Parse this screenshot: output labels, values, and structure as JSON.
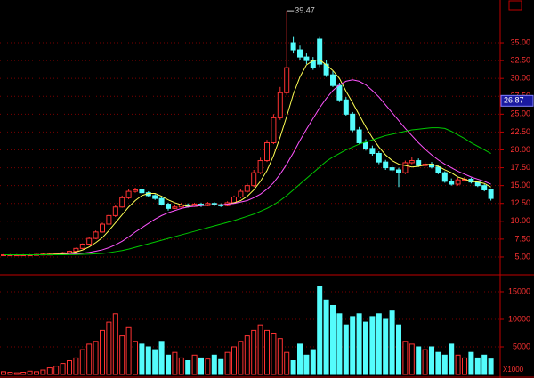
{
  "chart_data": [
    {
      "type": "candlestick",
      "open": [
        5.3,
        5.3,
        5.3,
        5.3,
        5.3,
        5.3,
        5.35,
        5.4,
        5.4,
        5.5,
        5.6,
        5.8,
        6.2,
        6.8,
        7.6,
        8.5,
        9.6,
        10.8,
        12,
        13.3,
        14.2,
        14.4,
        14,
        13.6,
        13.2,
        12.4,
        11.8,
        12,
        12.3,
        12.1,
        12.4,
        12.2,
        12.5,
        12.3,
        12.2,
        12.6,
        13.4,
        14.2,
        15,
        16.8,
        18.5,
        21,
        24.5,
        28,
        35,
        34,
        33,
        32.5,
        35.5,
        32,
        30.5,
        29,
        27,
        25,
        22.8,
        21,
        20.2,
        19.5,
        18.3,
        17.5,
        17.2,
        16.8,
        18.2,
        18.5,
        17.8,
        18,
        17.6,
        16.8,
        15.6,
        15.2,
        15.8,
        15.9,
        15.5,
        15,
        14.4
      ],
      "high": [
        5.4,
        5.4,
        5.4,
        5.4,
        5.4,
        5.45,
        5.5,
        5.5,
        5.6,
        5.7,
        5.9,
        6.3,
        6.9,
        7.8,
        8.7,
        9.8,
        11,
        12.3,
        13.6,
        14.5,
        14.7,
        14.6,
        14.2,
        13.8,
        13.4,
        12.6,
        12.3,
        12.6,
        12.5,
        12.6,
        12.6,
        12.7,
        12.7,
        12.5,
        12.8,
        13.6,
        14.5,
        15.3,
        17.2,
        18.9,
        21.4,
        25,
        28.8,
        39.47,
        35.8,
        34.6,
        33.5,
        33,
        35.8,
        32.6,
        31,
        29.4,
        27.4,
        25.3,
        23.2,
        21.5,
        20.6,
        19.8,
        18.6,
        17.9,
        17.5,
        18.5,
        19,
        18.8,
        18.3,
        18.3,
        17.8,
        17,
        16,
        16.1,
        16.2,
        16.1,
        15.7,
        15.2,
        14.6
      ],
      "low": [
        5.2,
        5.2,
        5.2,
        5.2,
        5.2,
        5.25,
        5.3,
        5.3,
        5.35,
        5.45,
        5.55,
        5.7,
        6.1,
        6.7,
        7.5,
        8.4,
        9.5,
        10.6,
        11.9,
        13.1,
        14,
        13.8,
        13.4,
        13,
        12.2,
        11.5,
        11.7,
        11.9,
        11.9,
        12,
        12,
        12.1,
        12.1,
        12,
        12.1,
        12.5,
        13.2,
        14,
        14.8,
        16.6,
        18.3,
        20.8,
        24.2,
        27.7,
        33.5,
        32.6,
        32,
        31.2,
        31.6,
        30.2,
        28.8,
        26.7,
        24.8,
        22.5,
        20.8,
        19.9,
        19.2,
        18,
        17.2,
        16.9,
        14.8,
        16.6,
        18,
        17.6,
        17.5,
        17.4,
        16.6,
        15.4,
        15,
        15,
        15.6,
        15.3,
        14.8,
        14.2,
        12.9
      ],
      "close": [
        5.3,
        5.3,
        5.3,
        5.3,
        5.3,
        5.35,
        5.4,
        5.4,
        5.5,
        5.6,
        5.8,
        6.2,
        6.8,
        7.6,
        8.5,
        9.6,
        10.8,
        12,
        13.3,
        14.2,
        14.4,
        14,
        13.6,
        13.2,
        12.4,
        11.8,
        12,
        12.3,
        12.1,
        12.4,
        12.2,
        12.5,
        12.3,
        12.2,
        12.6,
        13.4,
        14.2,
        15,
        16.8,
        18.5,
        21,
        24.5,
        28,
        31.5,
        34,
        33,
        32.5,
        31.5,
        32,
        30.5,
        29,
        27,
        25,
        22.8,
        21,
        20.2,
        19.5,
        18.3,
        17.5,
        17.2,
        16.8,
        18.2,
        18.5,
        17.8,
        18,
        17.6,
        16.8,
        15.6,
        15.2,
        15.8,
        15.9,
        15.5,
        15,
        14.4,
        13.2
      ],
      "up_color": "#ff3232",
      "down_color": "#54fcfc",
      "series": [
        {
          "color": "#ffff54",
          "values": [
            5.3,
            5.3,
            5.3,
            5.3,
            5.3,
            5.31,
            5.33,
            5.35,
            5.39,
            5.45,
            5.54,
            5.7,
            5.98,
            6.4,
            7,
            7.7,
            8.7,
            9.8,
            10.9,
            12,
            12.9,
            13.6,
            13.9,
            13.9,
            13.5,
            13,
            12.6,
            12.3,
            12.1,
            12.1,
            12.2,
            12.3,
            12.3,
            12.3,
            12.4,
            12.6,
            12.9,
            13.5,
            14.4,
            15.6,
            17.1,
            19.2,
            21.8,
            24.7,
            27.8,
            30.2,
            31.9,
            32.5,
            32.6,
            31.9,
            31.1,
            30,
            28.2,
            26.6,
            24.9,
            23.2,
            21.7,
            20.4,
            19.3,
            18.5,
            18,
            17.8,
            17.6,
            17.7,
            17.9,
            18,
            17.7,
            17.2,
            16.8,
            16.2,
            15.9,
            15.6,
            15.5,
            15.3,
            14.8
          ]
        },
        {
          "color": "#ff54ff",
          "values": [
            5.3,
            5.3,
            5.3,
            5.3,
            5.3,
            5.3,
            5.3,
            5.3,
            5.32,
            5.34,
            5.38,
            5.44,
            5.52,
            5.64,
            5.8,
            6,
            6.3,
            6.7,
            7.2,
            7.8,
            8.5,
            9.1,
            9.7,
            10.3,
            10.8,
            11.2,
            11.5,
            11.8,
            12,
            12.1,
            12.2,
            12.3,
            12.3,
            12.3,
            12.4,
            12.5,
            12.7,
            12.9,
            13.3,
            13.8,
            14.5,
            15.4,
            16.6,
            18,
            19.6,
            21.3,
            22.9,
            24.4,
            25.9,
            27.2,
            28.3,
            29.1,
            29.6,
            29.8,
            29.6,
            29.1,
            28.3,
            27.4,
            26.3,
            25.2,
            24.1,
            23,
            22,
            21,
            20.1,
            19.3,
            18.6,
            18,
            17.5,
            17,
            16.6,
            16.2,
            15.9,
            15.6,
            15.2
          ]
        },
        {
          "color": "#00c800",
          "values": [
            5.3,
            5.3,
            5.3,
            5.3,
            5.3,
            5.3,
            5.3,
            5.3,
            5.3,
            5.31,
            5.32,
            5.34,
            5.37,
            5.4,
            5.45,
            5.5,
            5.6,
            5.75,
            5.9,
            6.1,
            6.35,
            6.6,
            6.85,
            7.1,
            7.35,
            7.6,
            7.85,
            8.1,
            8.35,
            8.6,
            8.85,
            9.1,
            9.35,
            9.6,
            9.85,
            10.1,
            10.4,
            10.7,
            11,
            11.4,
            11.8,
            12.3,
            12.9,
            13.6,
            14.4,
            15.2,
            16,
            16.8,
            17.6,
            18.4,
            19,
            19.5,
            20,
            20.4,
            20.8,
            21.1,
            21.4,
            21.7,
            22,
            22.2,
            22.4,
            22.6,
            22.8,
            22.9,
            23,
            23.1,
            23.1,
            23,
            22.6,
            22.1,
            21.6,
            21,
            20.5,
            20,
            19.5
          ]
        }
      ],
      "price_marker": 26.87,
      "ylim": [
        2.63,
        40.98
      ],
      "yticks": [
        {
          "value": 5,
          "label": "5.00"
        },
        {
          "value": 7.5,
          "label": "7.50"
        },
        {
          "value": 10,
          "label": "10.00"
        },
        {
          "value": 12.5,
          "label": "12.50"
        },
        {
          "value": 15,
          "label": "15.00"
        },
        {
          "value": 17.5,
          "label": "17.50"
        },
        {
          "value": 20,
          "label": "20.00"
        },
        {
          "value": 22.5,
          "label": "22.50"
        },
        {
          "value": 25,
          "label": "25.00"
        },
        {
          "value": 27.5,
          "label": "27.50"
        },
        {
          "value": 30,
          "label": "30.00"
        },
        {
          "value": 32.5,
          "label": "32.50"
        },
        {
          "value": 35,
          "label": "35.00"
        }
      ],
      "grid": true
    },
    {
      "type": "volume",
      "values": [
        500,
        400,
        300,
        400,
        600,
        500,
        800,
        1200,
        1500,
        2000,
        2500,
        3000,
        4500,
        5500,
        6000,
        8000,
        9500,
        11000,
        7000,
        8500,
        6000,
        5500,
        5000,
        4500,
        6000,
        3500,
        4000,
        3000,
        2500,
        3500,
        3000,
        2800,
        3500,
        2700,
        4000,
        5000,
        6000,
        7000,
        8000,
        9000,
        8000,
        7500,
        6500,
        4000,
        2500,
        5500,
        3500,
        4500,
        16000,
        13500,
        12500,
        11000,
        9000,
        10500,
        11000,
        9500,
        10500,
        11000,
        10000,
        11500,
        9000,
        6000,
        5500,
        5000,
        4500,
        5000,
        4000,
        3500,
        5500,
        3500,
        3000,
        4000,
        3000,
        3500,
        2800
      ],
      "unit_label": "X1000",
      "ylim": [
        0,
        17900
      ],
      "yticks": [
        5000,
        10000,
        15000
      ],
      "grid": true
    }
  ]
}
